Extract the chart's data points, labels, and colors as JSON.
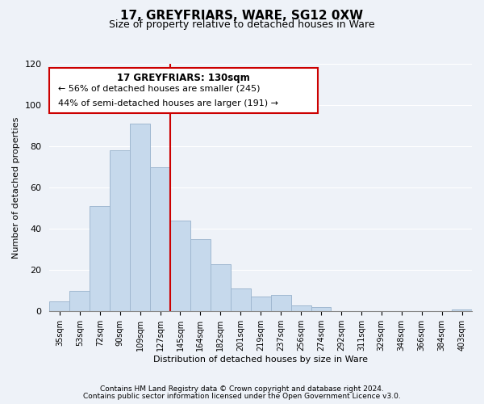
{
  "title": "17, GREYFRIARS, WARE, SG12 0XW",
  "subtitle": "Size of property relative to detached houses in Ware",
  "xlabel": "Distribution of detached houses by size in Ware",
  "ylabel": "Number of detached properties",
  "bar_color": "#c6d9ec",
  "bar_edge_color": "#a0b8d0",
  "categories": [
    "35sqm",
    "53sqm",
    "72sqm",
    "90sqm",
    "109sqm",
    "127sqm",
    "145sqm",
    "164sqm",
    "182sqm",
    "201sqm",
    "219sqm",
    "237sqm",
    "256sqm",
    "274sqm",
    "292sqm",
    "311sqm",
    "329sqm",
    "348sqm",
    "366sqm",
    "384sqm",
    "403sqm"
  ],
  "values": [
    5,
    10,
    51,
    78,
    91,
    70,
    44,
    35,
    23,
    11,
    7,
    8,
    3,
    2,
    0,
    0,
    0,
    0,
    0,
    0,
    1
  ],
  "vline_index": 5,
  "vline_color": "#cc0000",
  "annotation_title": "17 GREYFRIARS: 130sqm",
  "annotation_line1": "← 56% of detached houses are smaller (245)",
  "annotation_line2": "44% of semi-detached houses are larger (191) →",
  "ylim": [
    0,
    120
  ],
  "yticks": [
    0,
    20,
    40,
    60,
    80,
    100,
    120
  ],
  "footnote1": "Contains HM Land Registry data © Crown copyright and database right 2024.",
  "footnote2": "Contains public sector information licensed under the Open Government Licence v3.0.",
  "background_color": "#eef2f8"
}
